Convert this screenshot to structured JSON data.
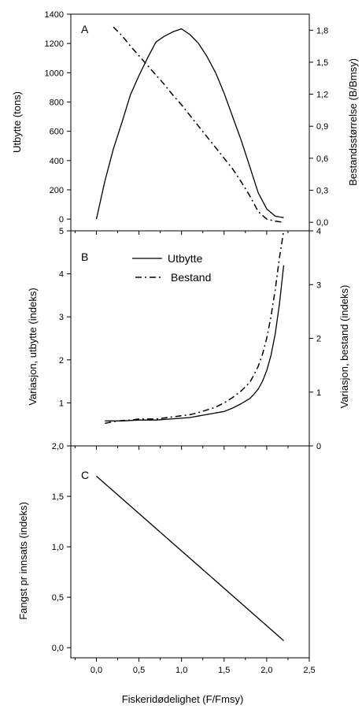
{
  "chart_data": [
    {
      "type": "line",
      "panel_label": "A",
      "xlabel": "",
      "ylabel": "Utbytte (tons)",
      "y2label": "Bestandsstørrelse (B/Bmsy)",
      "xlim": [
        -0.3,
        2.5
      ],
      "ylim": [
        -80,
        1400
      ],
      "y2lim": [
        -0.08,
        1.95
      ],
      "yticks": [
        "0",
        "200",
        "400",
        "600",
        "800",
        "1000",
        "1200",
        "1400"
      ],
      "y2ticks": [
        "0,0",
        "0,3",
        "0,6",
        "0,9",
        "1,2",
        "1,5",
        "1,8"
      ],
      "series": [
        {
          "axis": "left",
          "style": "solid",
          "x": [
            0.0,
            0.1,
            0.2,
            0.3,
            0.4,
            0.5,
            0.6,
            0.7,
            0.8,
            0.9,
            1.0,
            1.1,
            1.2,
            1.3,
            1.4,
            1.5,
            1.6,
            1.7,
            1.8,
            1.9,
            2.0,
            2.1,
            2.2
          ],
          "values": [
            0,
            260,
            480,
            660,
            850,
            980,
            1100,
            1210,
            1250,
            1280,
            1300,
            1260,
            1200,
            1110,
            1000,
            860,
            700,
            540,
            360,
            180,
            70,
            20,
            10
          ]
        },
        {
          "axis": "right",
          "style": "dashdot",
          "x": [
            0.2,
            0.3,
            0.4,
            0.5,
            0.6,
            0.7,
            0.8,
            0.9,
            1.0,
            1.1,
            1.2,
            1.3,
            1.4,
            1.5,
            1.6,
            1.7,
            1.8,
            1.9,
            2.0,
            2.1,
            2.2
          ],
          "values": [
            1.83,
            1.75,
            1.65,
            1.56,
            1.47,
            1.38,
            1.29,
            1.19,
            1.1,
            1.0,
            0.9,
            0.8,
            0.7,
            0.6,
            0.5,
            0.38,
            0.25,
            0.1,
            0.03,
            0.01,
            0.0
          ]
        }
      ]
    },
    {
      "type": "line",
      "panel_label": "B",
      "xlabel": "",
      "ylabel": "Variasjon, utbytte (indeks)",
      "y2label": "Variasjon, bestand (indeks)",
      "xlim": [
        -0.3,
        2.5
      ],
      "ylim": [
        0,
        5
      ],
      "y2lim": [
        0,
        4
      ],
      "yticks": [
        "1",
        "2",
        "3",
        "4",
        "5"
      ],
      "y2ticks": [
        "0",
        "1",
        "2",
        "3",
        "4"
      ],
      "legend": {
        "position": "top-center",
        "entries": [
          "Utbytte",
          "Bestand"
        ]
      },
      "series": [
        {
          "name": "Utbytte",
          "axis": "left",
          "style": "solid",
          "x": [
            0.1,
            0.3,
            0.5,
            0.7,
            0.9,
            1.1,
            1.3,
            1.5,
            1.6,
            1.7,
            1.8,
            1.85,
            1.9,
            1.95,
            2.0,
            2.05,
            2.1,
            2.15,
            2.2
          ],
          "values": [
            0.58,
            0.58,
            0.6,
            0.6,
            0.63,
            0.66,
            0.73,
            0.8,
            0.88,
            0.98,
            1.1,
            1.2,
            1.32,
            1.5,
            1.75,
            2.1,
            2.6,
            3.3,
            4.2
          ]
        },
        {
          "name": "Bestand",
          "axis": "right",
          "style": "dashdot",
          "x": [
            0.1,
            0.2,
            0.3,
            0.4,
            0.5,
            0.6,
            0.7,
            0.8,
            0.9,
            1.0,
            1.1,
            1.2,
            1.3,
            1.4,
            1.5,
            1.6,
            1.7,
            1.8,
            1.85,
            1.9,
            1.95,
            2.0,
            2.05,
            2.1,
            2.15,
            2.2
          ],
          "values": [
            0.42,
            0.45,
            0.47,
            0.48,
            0.5,
            0.5,
            0.5,
            0.52,
            0.54,
            0.56,
            0.58,
            0.62,
            0.67,
            0.72,
            0.8,
            0.9,
            1.02,
            1.18,
            1.32,
            1.48,
            1.7,
            2.0,
            2.4,
            2.9,
            3.5,
            4.0
          ]
        }
      ]
    },
    {
      "type": "line",
      "panel_label": "C",
      "xlabel": "Fiskeridødelighet (F/Fmsy)",
      "ylabel": "Fangst pr innsats (indeks)",
      "xlim": [
        -0.3,
        2.5
      ],
      "ylim": [
        -0.1,
        2.0
      ],
      "xticks": [
        "0,0",
        "0,5",
        "1,0",
        "1,5",
        "2,0",
        "2,5"
      ],
      "yticks": [
        "0,0",
        "0,5",
        "1,0",
        "1,5",
        "2,0"
      ],
      "series": [
        {
          "axis": "left",
          "style": "solid",
          "x": [
            0.0,
            2.2
          ],
          "values": [
            1.7,
            0.07
          ]
        }
      ]
    }
  ]
}
